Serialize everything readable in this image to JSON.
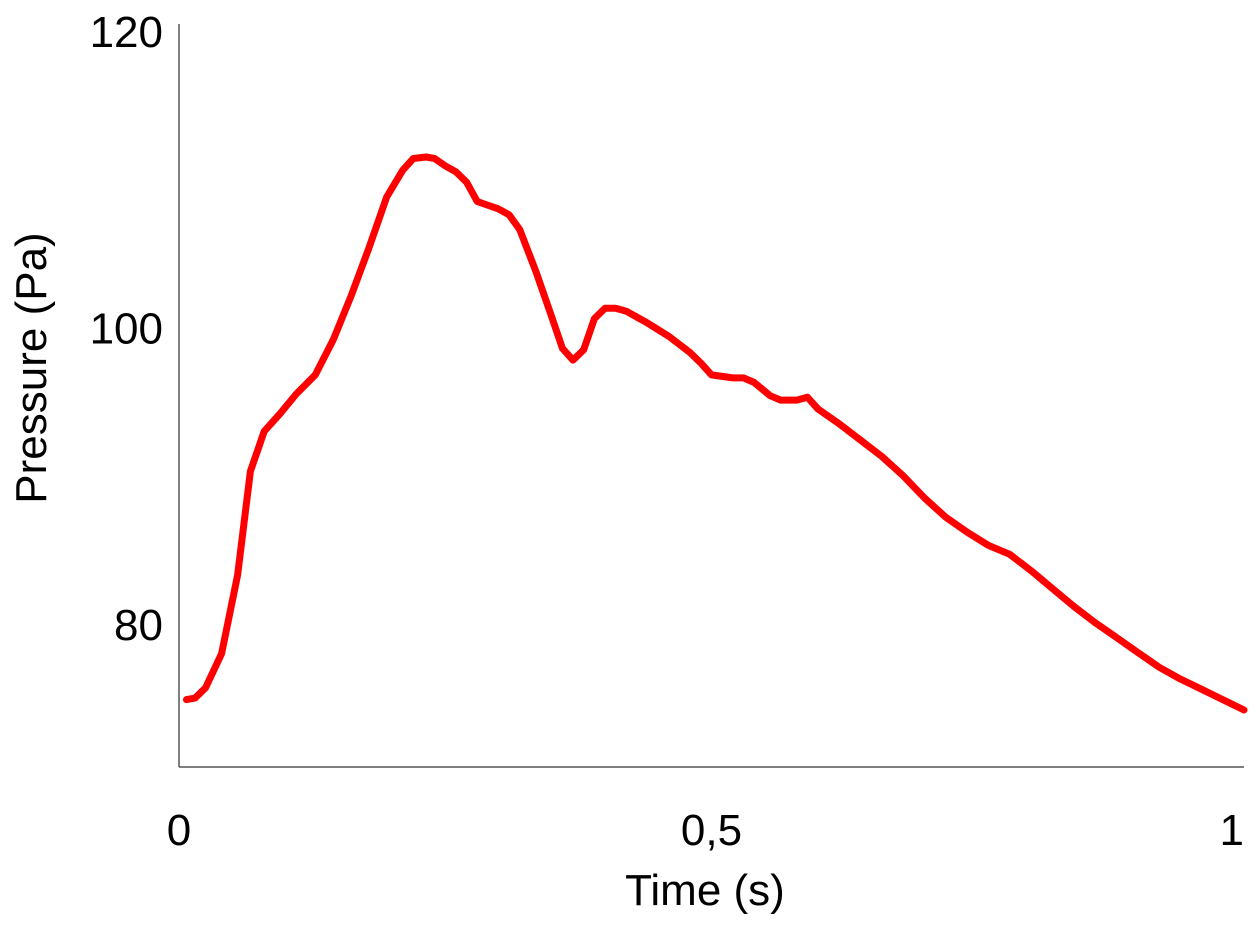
{
  "chart_data": {
    "type": "line",
    "xlabel": "Time (s)",
    "ylabel": "Pressure (Pa)",
    "xlim": [
      0,
      1
    ],
    "ylim": [
      71,
      120
    ],
    "x_ticks": [
      0,
      0.5,
      1
    ],
    "x_tick_labels": [
      "0",
      "0,5",
      "1"
    ],
    "y_ticks": [
      80,
      100,
      120
    ],
    "y_tick_labels": [
      "80",
      "100",
      "120"
    ],
    "grid": false,
    "legend": "none",
    "series": [
      {
        "color": "#ff0000",
        "x": [
          0.007,
          0.015,
          0.025,
          0.04,
          0.055,
          0.067,
          0.08,
          0.095,
          0.11,
          0.128,
          0.145,
          0.162,
          0.178,
          0.195,
          0.21,
          0.22,
          0.232,
          0.24,
          0.25,
          0.26,
          0.27,
          0.28,
          0.3,
          0.31,
          0.32,
          0.335,
          0.35,
          0.36,
          0.37,
          0.38,
          0.39,
          0.4,
          0.41,
          0.42,
          0.44,
          0.46,
          0.48,
          0.49,
          0.5,
          0.51,
          0.52,
          0.53,
          0.54,
          0.555,
          0.565,
          0.575,
          0.58,
          0.59,
          0.6,
          0.62,
          0.64,
          0.66,
          0.68,
          0.7,
          0.72,
          0.74,
          0.76,
          0.78,
          0.8,
          0.82,
          0.84,
          0.86,
          0.88,
          0.9,
          0.92,
          0.94,
          0.96,
          0.98,
          1.0
        ],
        "y": [
          74.9,
          75.0,
          75.7,
          78.0,
          83.3,
          90.3,
          93.0,
          94.2,
          95.5,
          96.8,
          99.2,
          102.2,
          105.3,
          108.8,
          110.6,
          111.4,
          111.5,
          111.4,
          110.9,
          110.5,
          109.8,
          108.5,
          108.0,
          107.6,
          106.6,
          103.8,
          100.7,
          98.6,
          97.8,
          98.5,
          100.6,
          101.3,
          101.3,
          101.1,
          100.3,
          99.4,
          98.3,
          97.6,
          96.8,
          96.7,
          96.6,
          96.6,
          96.3,
          95.4,
          95.1,
          95.1,
          95.1,
          95.3,
          94.5,
          93.5,
          92.4,
          91.3,
          90.0,
          88.5,
          87.2,
          86.2,
          85.3,
          84.7,
          83.6,
          82.4,
          81.2,
          80.1,
          79.1,
          78.1,
          77.1,
          76.3,
          75.6,
          74.9,
          74.2
        ]
      }
    ]
  }
}
